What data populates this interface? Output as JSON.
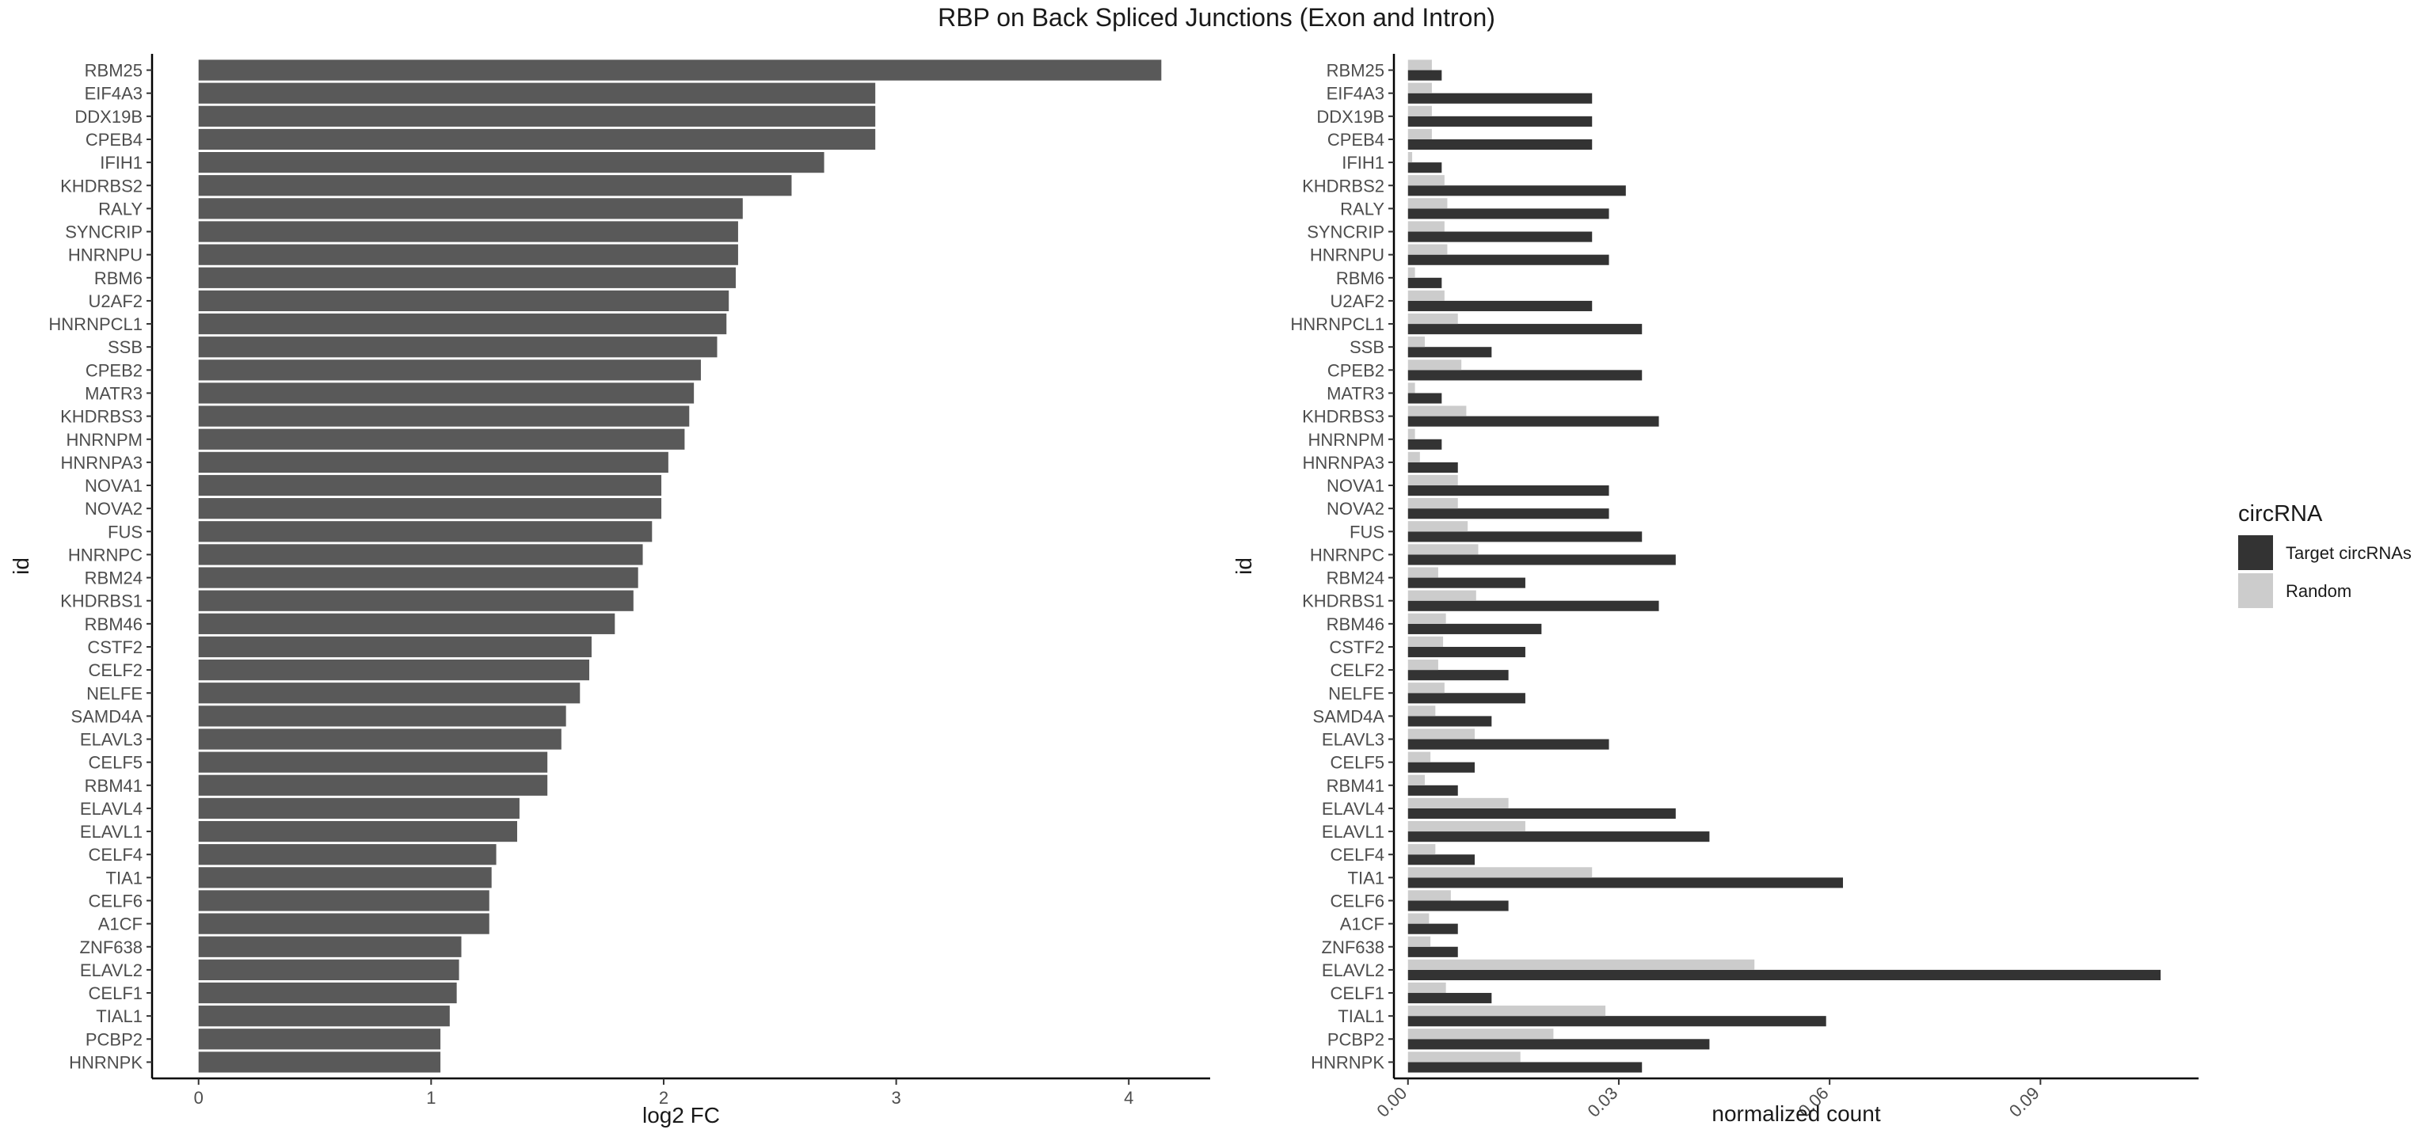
{
  "title": "RBP on Back Spliced Junctions (Exon and Intron)",
  "chart_data": [
    {
      "type": "bar",
      "orientation": "horizontal",
      "xlabel": "log2 FC",
      "ylabel": "id",
      "xlim": [
        -0.2,
        4.35
      ],
      "xticks": [
        0,
        1,
        2,
        3,
        4
      ],
      "bar_color": "#595959",
      "categories": [
        "RBM25",
        "EIF4A3",
        "DDX19B",
        "CPEB4",
        "IFIH1",
        "KHDRBS2",
        "RALY",
        "SYNCRIP",
        "HNRNPU",
        "RBM6",
        "U2AF2",
        "HNRNPCL1",
        "SSB",
        "CPEB2",
        "MATR3",
        "KHDRBS3",
        "HNRNPM",
        "HNRNPA3",
        "NOVA1",
        "NOVA2",
        "FUS",
        "HNRNPC",
        "RBM24",
        "KHDRBS1",
        "RBM46",
        "CSTF2",
        "CELF2",
        "NELFE",
        "SAMD4A",
        "ELAVL3",
        "CELF5",
        "RBM41",
        "ELAVL4",
        "ELAVL1",
        "CELF4",
        "TIA1",
        "CELF6",
        "A1CF",
        "ZNF638",
        "ELAVL2",
        "CELF1",
        "TIAL1",
        "PCBP2",
        "HNRNPK"
      ],
      "values": [
        4.14,
        2.91,
        2.91,
        2.91,
        2.69,
        2.55,
        2.34,
        2.32,
        2.32,
        2.31,
        2.28,
        2.27,
        2.23,
        2.16,
        2.13,
        2.11,
        2.09,
        2.02,
        1.99,
        1.99,
        1.95,
        1.91,
        1.89,
        1.87,
        1.79,
        1.69,
        1.68,
        1.64,
        1.58,
        1.56,
        1.5,
        1.5,
        1.38,
        1.37,
        1.28,
        1.26,
        1.25,
        1.25,
        1.13,
        1.12,
        1.11,
        1.08,
        1.04,
        1.04
      ]
    },
    {
      "type": "bar",
      "orientation": "horizontal",
      "grouped": true,
      "xlabel": "normalized count",
      "ylabel": "id",
      "xlim": [
        -0.002,
        0.1125
      ],
      "xticks": [
        0.0,
        0.03,
        0.06,
        0.09
      ],
      "xtick_labels": [
        "0.00",
        "0.03",
        "0.06",
        "0.09"
      ],
      "legend_title": "circRNA",
      "legend_position": "right",
      "categories": [
        "RBM25",
        "EIF4A3",
        "DDX19B",
        "CPEB4",
        "IFIH1",
        "KHDRBS2",
        "RALY",
        "SYNCRIP",
        "HNRNPU",
        "RBM6",
        "U2AF2",
        "HNRNPCL1",
        "SSB",
        "CPEB2",
        "MATR3",
        "KHDRBS3",
        "HNRNPM",
        "HNRNPA3",
        "NOVA1",
        "NOVA2",
        "FUS",
        "HNRNPC",
        "RBM24",
        "KHDRBS1",
        "RBM46",
        "CSTF2",
        "CELF2",
        "NELFE",
        "SAMD4A",
        "ELAVL3",
        "CELF5",
        "RBM41",
        "ELAVL4",
        "ELAVL1",
        "CELF4",
        "TIA1",
        "CELF6",
        "A1CF",
        "ZNF638",
        "ELAVL2",
        "CELF1",
        "TIAL1",
        "PCBP2",
        "HNRNPK"
      ],
      "series": [
        {
          "name": "Target circRNAs",
          "color": "#333333",
          "values": [
            0.0048,
            0.0262,
            0.0262,
            0.0262,
            0.0048,
            0.031,
            0.0286,
            0.0262,
            0.0286,
            0.0048,
            0.0262,
            0.0333,
            0.0119,
            0.0333,
            0.0048,
            0.0357,
            0.0048,
            0.0071,
            0.0286,
            0.0286,
            0.0333,
            0.0381,
            0.0167,
            0.0357,
            0.019,
            0.0167,
            0.0143,
            0.0167,
            0.0119,
            0.0286,
            0.0095,
            0.0071,
            0.0381,
            0.0429,
            0.0095,
            0.0619,
            0.0143,
            0.0071,
            0.0071,
            0.1071,
            0.0119,
            0.0595,
            0.0429,
            0.0333
          ]
        },
        {
          "name": "Random",
          "color": "#cccccc",
          "values": [
            0.0034,
            0.0034,
            0.0034,
            0.0034,
            0.0006,
            0.0052,
            0.0056,
            0.0052,
            0.0056,
            0.001,
            0.0052,
            0.0071,
            0.0024,
            0.0076,
            0.001,
            0.0083,
            0.001,
            0.0017,
            0.0071,
            0.0071,
            0.0085,
            0.01,
            0.0043,
            0.0097,
            0.0054,
            0.005,
            0.0043,
            0.0052,
            0.0039,
            0.0095,
            0.0032,
            0.0024,
            0.0143,
            0.0167,
            0.0039,
            0.0262,
            0.0061,
            0.003,
            0.0032,
            0.0493,
            0.0054,
            0.0281,
            0.0207,
            0.016
          ]
        }
      ]
    }
  ]
}
